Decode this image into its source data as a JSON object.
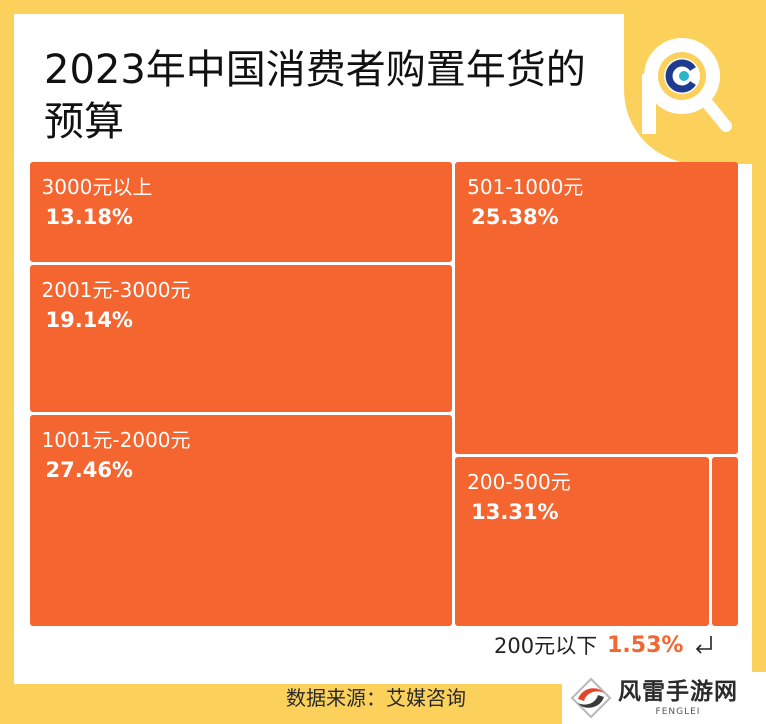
{
  "title": "2023年中国消费者购置年货的预算",
  "source": "数据来源：艾媒咨询",
  "watermark": {
    "name": "风雷手游网",
    "name_en": "FENGLEI"
  },
  "colors": {
    "tile": "#f46530",
    "frame": "#fbd15c",
    "accent_text": "#f46530"
  },
  "icons": {
    "brand_logo": "pc-magnifier-logo-icon",
    "watermark_logo": "fenglei-swirl-icon",
    "pointer": "return-arrow-icon"
  },
  "chart_data": {
    "type": "treemap",
    "title": "2023年中国消费者购置年货的预算",
    "items": [
      {
        "label": "3000元以上",
        "value": 13.18,
        "display": "13.18%"
      },
      {
        "label": "2001元-3000元",
        "value": 19.14,
        "display": "19.14%"
      },
      {
        "label": "1001元-2000元",
        "value": 27.46,
        "display": "27.46%"
      },
      {
        "label": "501-1000元",
        "value": 25.38,
        "display": "25.38%"
      },
      {
        "label": "200-500元",
        "value": 13.31,
        "display": "13.31%"
      },
      {
        "label": "200元以下",
        "value": 1.53,
        "display": "1.53%"
      }
    ]
  }
}
